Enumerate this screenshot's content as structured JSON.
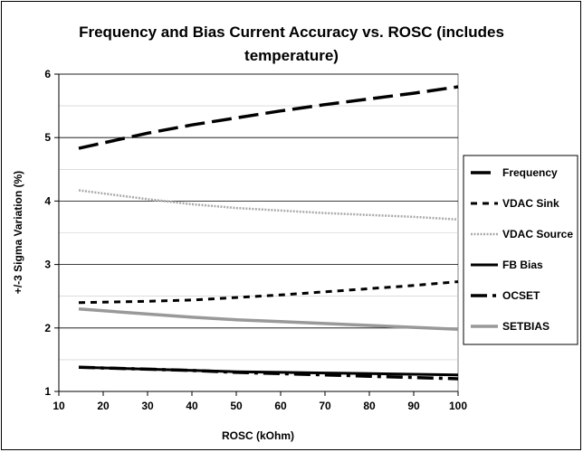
{
  "chart_data": {
    "type": "line",
    "title_lines": [
      "Frequency and Bias Current Accuracy vs. ROSC (includes",
      "temperature)"
    ],
    "xlabel": "ROSC (kOhm)",
    "ylabel": "+/-3 Sigma Variation (%)",
    "xlim": [
      10,
      100
    ],
    "ylim": [
      1,
      6
    ],
    "xticks": [
      10,
      20,
      30,
      40,
      50,
      60,
      70,
      80,
      90,
      100
    ],
    "yticks": [
      1,
      2,
      3,
      4,
      5,
      6
    ],
    "grid": true,
    "legend_position": "right",
    "series": [
      {
        "name": "Frequency",
        "color": "#000000",
        "style": "long-dash",
        "x": [
          14.5,
          30,
          40,
          50,
          60,
          70,
          80,
          90,
          100
        ],
        "y": [
          4.83,
          5.07,
          5.2,
          5.31,
          5.42,
          5.52,
          5.61,
          5.7,
          5.8
        ]
      },
      {
        "name": "VDAC Sink",
        "color": "#000000",
        "style": "short-dash",
        "x": [
          14.5,
          30,
          40,
          50,
          60,
          70,
          80,
          90,
          100
        ],
        "y": [
          2.4,
          2.42,
          2.44,
          2.48,
          2.52,
          2.57,
          2.62,
          2.67,
          2.73
        ]
      },
      {
        "name": "VDAC Source",
        "color": "#aaaaaa",
        "style": "dotted",
        "x": [
          14.5,
          30,
          40,
          50,
          60,
          70,
          80,
          90,
          100
        ],
        "y": [
          4.17,
          4.03,
          3.95,
          3.89,
          3.85,
          3.81,
          3.78,
          3.75,
          3.71
        ]
      },
      {
        "name": "FB Bias",
        "color": "#000000",
        "style": "solid",
        "x": [
          14.5,
          30,
          40,
          50,
          60,
          70,
          80,
          90,
          100
        ],
        "y": [
          1.38,
          1.35,
          1.33,
          1.31,
          1.3,
          1.29,
          1.28,
          1.27,
          1.26
        ]
      },
      {
        "name": "OCSET",
        "color": "#000000",
        "style": "dash-dot",
        "x": [
          14.5,
          30,
          40,
          50,
          60,
          70,
          80,
          90,
          100
        ],
        "y": [
          1.38,
          1.35,
          1.33,
          1.3,
          1.28,
          1.26,
          1.24,
          1.22,
          1.2
        ]
      },
      {
        "name": "SETBIAS",
        "color": "#999999",
        "style": "solid-thick",
        "x": [
          14.5,
          30,
          40,
          50,
          60,
          70,
          80,
          90,
          100
        ],
        "y": [
          2.3,
          2.22,
          2.17,
          2.13,
          2.1,
          2.07,
          2.04,
          2.01,
          1.98
        ]
      }
    ]
  }
}
